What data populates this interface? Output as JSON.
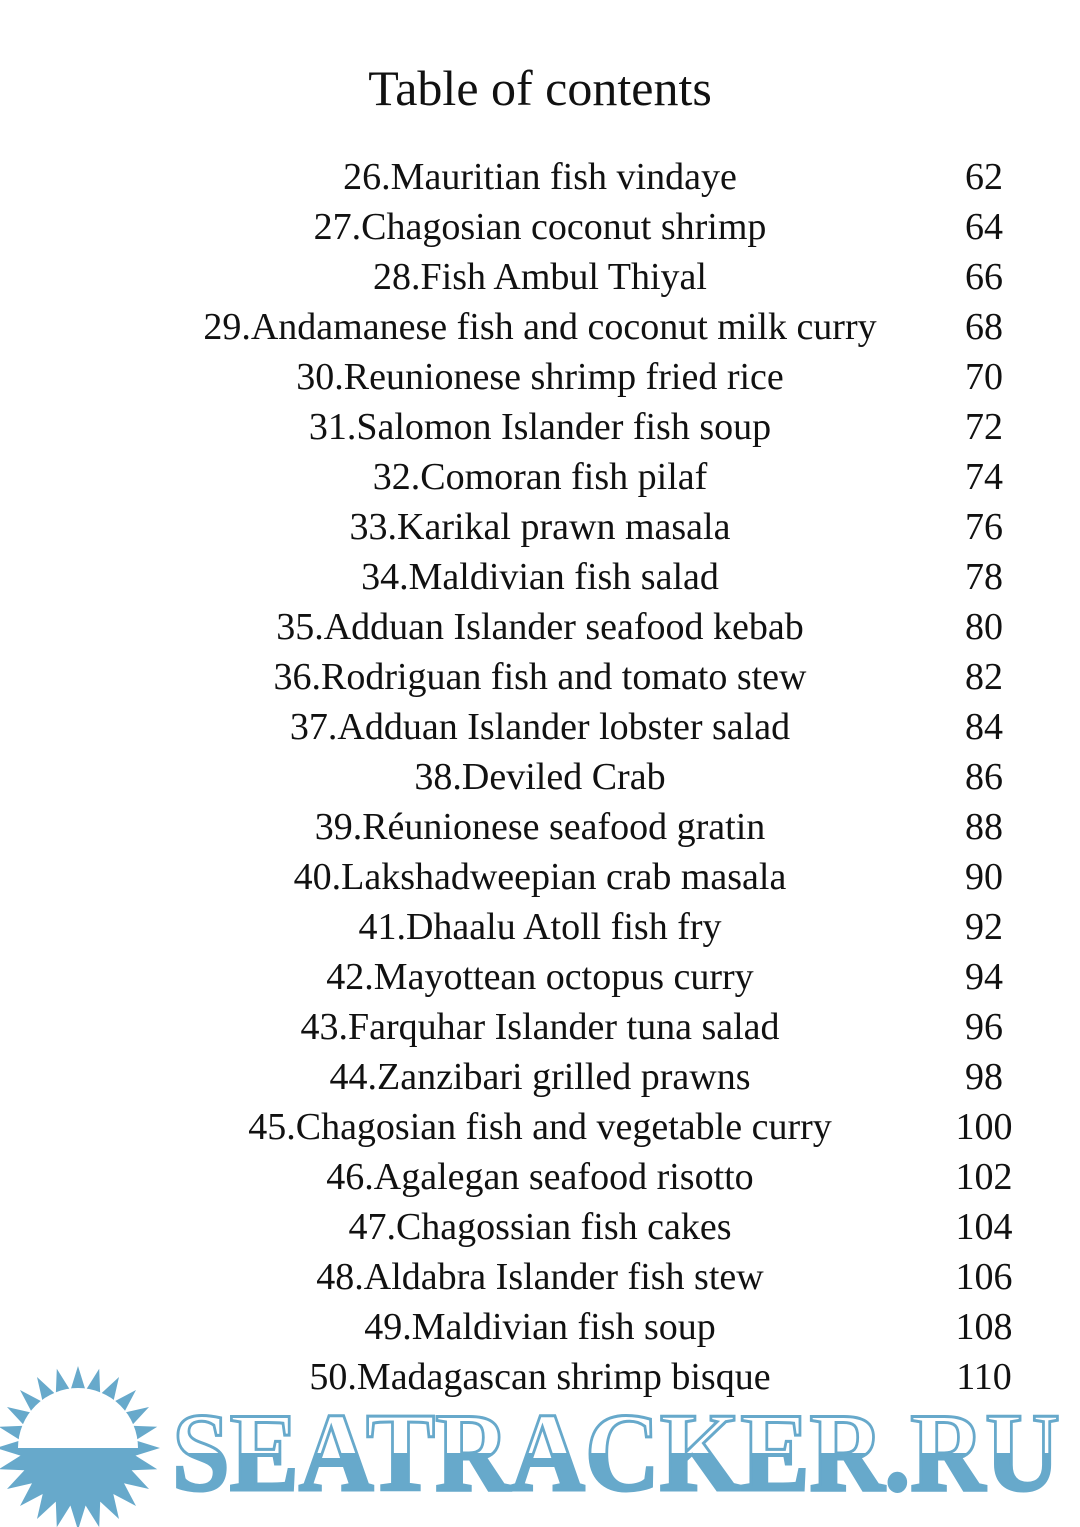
{
  "title": "Table of contents",
  "entries": [
    {
      "label": "26.Mauritian fish vindaye",
      "page": "62"
    },
    {
      "label": "27.Chagosian coconut shrimp",
      "page": "64"
    },
    {
      "label": "28.Fish Ambul Thiyal",
      "page": "66"
    },
    {
      "label": "29.Andamanese fish and coconut milk curry",
      "page": "68"
    },
    {
      "label": "30.Reunionese shrimp fried rice",
      "page": "70"
    },
    {
      "label": "31.Salomon Islander fish soup",
      "page": "72"
    },
    {
      "label": "32.Comoran fish pilaf",
      "page": "74"
    },
    {
      "label": "33.Karikal prawn masala",
      "page": "76"
    },
    {
      "label": "34.Maldivian fish salad",
      "page": "78"
    },
    {
      "label": "35.Adduan Islander seafood kebab",
      "page": "80"
    },
    {
      "label": "36.Rodriguan fish and tomato stew",
      "page": "82"
    },
    {
      "label": "37.Adduan Islander lobster salad",
      "page": "84"
    },
    {
      "label": "38.Deviled Crab",
      "page": "86"
    },
    {
      "label": "39.Réunionese seafood gratin",
      "page": "88"
    },
    {
      "label": "40.Lakshadweepian crab masala",
      "page": "90"
    },
    {
      "label": "41.Dhaalu Atoll fish fry",
      "page": "92"
    },
    {
      "label": "42.Mayottean octopus curry",
      "page": "94"
    },
    {
      "label": "43.Farquhar Islander tuna salad",
      "page": "96"
    },
    {
      "label": "44.Zanzibari grilled prawns",
      "page": "98"
    },
    {
      "label": "45.Chagosian fish and vegetable curry",
      "page": "100"
    },
    {
      "label": "46.Agalegan seafood risotto",
      "page": "102"
    },
    {
      "label": "47.Chagossian fish cakes",
      "page": "104"
    },
    {
      "label": "48.Aldabra Islander fish stew",
      "page": "106"
    },
    {
      "label": "49.Maldivian fish soup",
      "page": "108"
    },
    {
      "label": "50.Madagascan shrimp bisque",
      "page": "110"
    }
  ],
  "watermark": {
    "text": "SEATRACKER.RU",
    "color": "#67a9cb",
    "icon": "sun-icon"
  }
}
